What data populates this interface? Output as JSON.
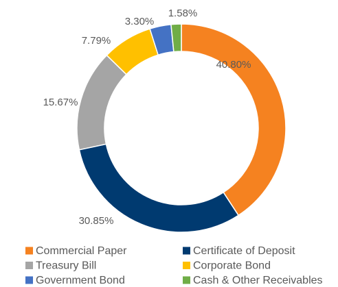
{
  "chart_data": {
    "type": "donut",
    "categories": [
      "Commercial Paper",
      "Certificate of Deposit",
      "Treasury Bill",
      "Corporate Bond",
      "Government Bond",
      "Cash & Other Receivables"
    ],
    "values": [
      40.8,
      30.85,
      15.67,
      7.79,
      3.3,
      1.58
    ],
    "value_labels": [
      "40.80%",
      "30.85%",
      "15.67%",
      "7.79%",
      "3.30%",
      "1.58%"
    ],
    "colors": [
      "#f58220",
      "#003a70",
      "#a5a5a5",
      "#ffc000",
      "#4472c4",
      "#70ad47"
    ]
  }
}
